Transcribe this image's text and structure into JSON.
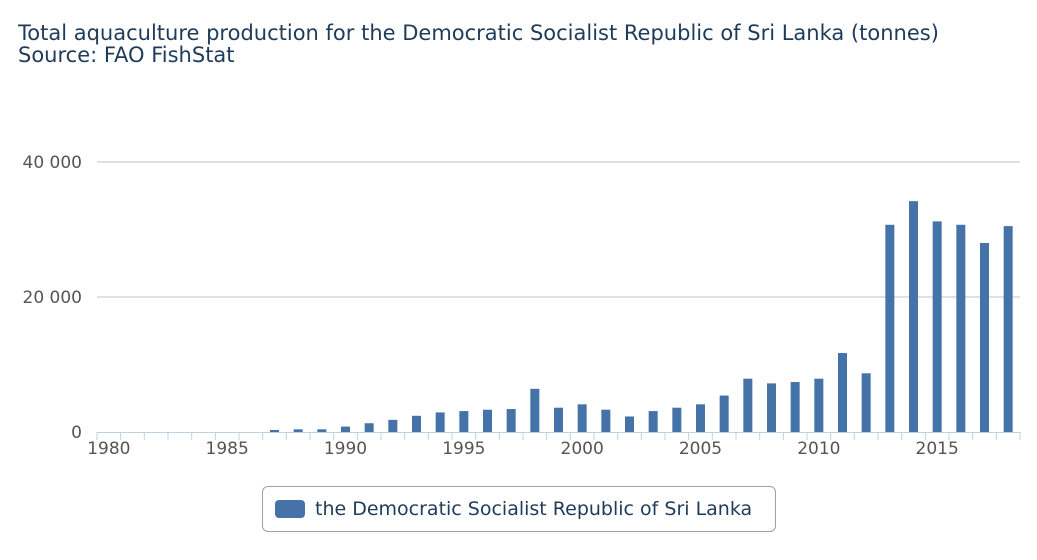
{
  "chart_data": {
    "type": "bar",
    "title": "Total aquaculture production for the Democratic Socialist Republic of Sri Lanka (tonnes)",
    "subtitle": "Source: FAO FishStat",
    "xlabel": "",
    "ylabel": "",
    "categories": [
      1980,
      1981,
      1982,
      1983,
      1984,
      1985,
      1986,
      1987,
      1988,
      1989,
      1990,
      1991,
      1992,
      1993,
      1994,
      1995,
      1996,
      1997,
      1998,
      1999,
      2000,
      2001,
      2002,
      2003,
      2004,
      2005,
      2006,
      2007,
      2008,
      2009,
      2010,
      2011,
      2012,
      2013,
      2014,
      2015,
      2016,
      2017,
      2018
    ],
    "x_tick_labels": [
      "1980",
      "1985",
      "1990",
      "1995",
      "2000",
      "2005",
      "2010",
      "2015"
    ],
    "y_tick_labels": [
      "0",
      "20 000",
      "40 000"
    ],
    "y_ticks": [
      0,
      20000,
      40000
    ],
    "ylim": [
      0,
      40000
    ],
    "grid": true,
    "legend_position": "bottom-center",
    "series": [
      {
        "name": "the Democratic Socialist Republic of Sri Lanka",
        "color": "#4572a7",
        "values": [
          0,
          0,
          0,
          0,
          0,
          0,
          0,
          300,
          400,
          400,
          800,
          1300,
          1800,
          2400,
          2900,
          3100,
          3300,
          3400,
          6400,
          3600,
          4100,
          3300,
          2300,
          3100,
          3600,
          4100,
          5400,
          7900,
          7200,
          7400,
          7900,
          11700,
          8700,
          30700,
          34200,
          31200,
          30700,
          28000,
          30500
        ]
      }
    ]
  }
}
